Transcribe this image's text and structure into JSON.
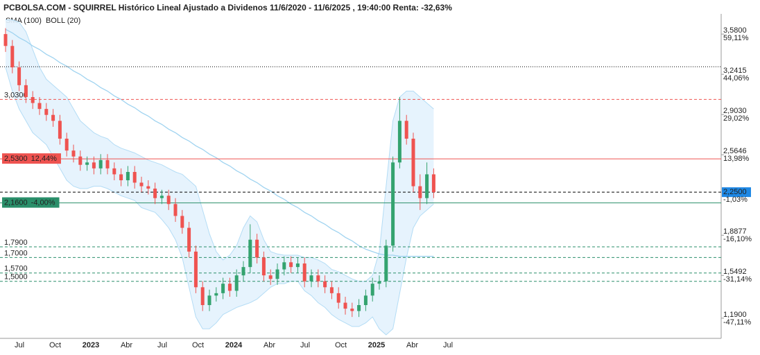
{
  "chart_data": {
    "type": "candlestick",
    "title": "PCBOLSA.COM - SQUIRREL Histórico Lineal Ajustado a Dividenos 11/6/2020 - 11/6/2025 , 19:40:00 Renta: -32,63%",
    "legend": [
      {
        "name": "SMA (100)",
        "color": "#9fd3f0"
      },
      {
        "name": "BOLL (20)",
        "color": "#c8c8c8"
      }
    ],
    "up_color": "#34a36f",
    "down_color": "#ef5350",
    "ylim": [
      1.02,
      3.75
    ],
    "yticks": [
      {
        "value": 3.58,
        "label": "3,5800"
      },
      {
        "value": 3.2415,
        "label": "3,2415"
      },
      {
        "value": 2.903,
        "label": "2,9030"
      },
      {
        "value": 2.5646,
        "label": "2,5646"
      },
      {
        "value": 1.8877,
        "label": "1,8877"
      },
      {
        "value": 1.5492,
        "label": "1,5492"
      },
      {
        "value": 1.19,
        "label": "1,1900"
      }
    ],
    "ytick_changes": [
      "59,11%",
      "44,06%",
      "29,02%",
      "13,98%",
      "-16,10%",
      "-31,14%",
      "-47,11%"
    ],
    "grid": false,
    "categories": [
      "Jul",
      "Oct",
      "2023",
      "Abr",
      "Jul",
      "Oct",
      "2024",
      "Abr",
      "Jul",
      "Oct",
      "2025",
      "Abr",
      "Jul"
    ],
    "levels": [
      {
        "value": 3.305,
        "color": "#000000",
        "style": "dotted"
      },
      {
        "value": 3.03,
        "label": "3,0300",
        "color": "#ef5350",
        "style": "dashed"
      },
      {
        "value": 2.53,
        "label": "2,5300",
        "change": "12,44%",
        "color": "#ef5350",
        "style": "solid"
      },
      {
        "value": 2.16,
        "label": "2,1600",
        "change": "-4,00%",
        "color": "#2a8f6a",
        "style": "solid"
      },
      {
        "value": 1.79,
        "label": "1,7900",
        "color": "#2a8f6a",
        "style": "dashed"
      },
      {
        "value": 1.7,
        "label": "1,7000",
        "color": "#2a8f6a",
        "style": "dashed"
      },
      {
        "value": 1.57,
        "label": "1,5700",
        "color": "#2a8f6a",
        "style": "dashed"
      },
      {
        "value": 1.5,
        "label": "1,5000",
        "color": "#2a8f6a",
        "style": "dashed"
      }
    ],
    "last_price": {
      "value": 2.25,
      "label": "2,2500",
      "change": "-1,03%",
      "color": "#1e88e5"
    },
    "open": [
      3.58,
      3.48,
      3.3,
      3.15,
      3.05,
      3.0,
      2.95,
      2.9,
      2.85,
      2.7,
      2.6,
      2.55,
      2.48,
      2.5,
      2.45,
      2.52,
      2.45,
      2.4,
      2.35,
      2.42,
      2.33,
      2.3,
      2.28,
      2.2,
      2.22,
      2.15,
      2.05,
      1.95,
      1.75,
      1.45,
      1.3,
      1.38,
      1.4,
      1.48,
      1.42,
      1.55,
      1.62,
      1.85,
      1.7,
      1.55,
      1.52,
      1.6,
      1.66,
      1.62,
      1.65,
      1.5,
      1.55,
      1.5,
      1.45,
      1.4,
      1.32,
      1.27,
      1.25,
      1.3,
      1.38,
      1.48,
      1.5,
      1.8,
      2.5,
      2.85,
      2.7,
      2.3,
      2.2,
      2.4
    ],
    "high": [
      3.63,
      3.53,
      3.35,
      3.2,
      3.1,
      3.05,
      3.0,
      2.95,
      2.9,
      2.75,
      2.65,
      2.6,
      2.55,
      2.55,
      2.57,
      2.57,
      2.5,
      2.45,
      2.47,
      2.47,
      2.38,
      2.35,
      2.33,
      2.27,
      2.27,
      2.2,
      2.1,
      2.0,
      1.8,
      1.5,
      1.43,
      1.45,
      1.53,
      1.53,
      1.6,
      1.67,
      1.98,
      1.9,
      1.75,
      1.6,
      1.65,
      1.71,
      1.71,
      1.7,
      1.7,
      1.6,
      1.6,
      1.55,
      1.5,
      1.45,
      1.37,
      1.32,
      1.35,
      1.43,
      1.53,
      1.55,
      1.85,
      2.55,
      3.05,
      2.9,
      2.75,
      2.4,
      2.5,
      2.45
    ],
    "low": [
      3.43,
      3.25,
      3.1,
      3.0,
      2.95,
      2.9,
      2.85,
      2.8,
      2.65,
      2.55,
      2.5,
      2.43,
      2.43,
      2.4,
      2.4,
      2.4,
      2.35,
      2.3,
      2.3,
      2.28,
      2.25,
      2.23,
      2.15,
      2.15,
      2.1,
      2.0,
      1.9,
      1.7,
      1.4,
      1.25,
      1.25,
      1.33,
      1.35,
      1.37,
      1.37,
      1.5,
      1.57,
      1.65,
      1.5,
      1.47,
      1.47,
      1.55,
      1.57,
      1.57,
      1.45,
      1.45,
      1.45,
      1.4,
      1.35,
      1.27,
      1.22,
      1.2,
      1.2,
      1.25,
      1.33,
      1.43,
      1.45,
      1.75,
      2.45,
      2.65,
      2.25,
      2.1,
      2.15,
      2.2
    ],
    "close": [
      3.48,
      3.3,
      3.15,
      3.05,
      3.0,
      2.95,
      2.9,
      2.85,
      2.7,
      2.6,
      2.55,
      2.48,
      2.5,
      2.45,
      2.52,
      2.45,
      2.4,
      2.35,
      2.42,
      2.33,
      2.3,
      2.28,
      2.2,
      2.22,
      2.15,
      2.05,
      1.95,
      1.75,
      1.45,
      1.3,
      1.38,
      1.4,
      1.48,
      1.42,
      1.55,
      1.62,
      1.85,
      1.7,
      1.55,
      1.52,
      1.6,
      1.66,
      1.62,
      1.65,
      1.5,
      1.55,
      1.5,
      1.45,
      1.4,
      1.32,
      1.27,
      1.25,
      1.3,
      1.38,
      1.48,
      1.5,
      1.8,
      2.5,
      2.85,
      2.7,
      2.3,
      2.2,
      2.4,
      2.25
    ],
    "sma": [
      3.62,
      3.59,
      3.55,
      3.52,
      3.48,
      3.45,
      3.41,
      3.38,
      3.34,
      3.31,
      3.27,
      3.24,
      3.2,
      3.17,
      3.13,
      3.1,
      3.06,
      3.03,
      2.99,
      2.96,
      2.92,
      2.89,
      2.85,
      2.82,
      2.78,
      2.75,
      2.71,
      2.68,
      2.64,
      2.61,
      2.57,
      2.54,
      2.5,
      2.47,
      2.43,
      2.4,
      2.36,
      2.33,
      2.29,
      2.26,
      2.22,
      2.19,
      2.15,
      2.12,
      2.08,
      2.05,
      2.01,
      1.98,
      1.94,
      1.91,
      1.87,
      1.84,
      1.8,
      1.77,
      1.75,
      1.73,
      1.72,
      1.72,
      1.71,
      1.71,
      1.71,
      1.71,
      1.71,
      1.71
    ],
    "boll_upper": [
      3.7,
      3.7,
      3.68,
      3.6,
      3.45,
      3.3,
      3.2,
      3.15,
      3.1,
      3.05,
      2.95,
      2.85,
      2.8,
      2.75,
      2.72,
      2.7,
      2.65,
      2.62,
      2.6,
      2.58,
      2.55,
      2.52,
      2.5,
      2.48,
      2.45,
      2.42,
      2.4,
      2.35,
      2.3,
      2.1,
      1.9,
      1.75,
      1.68,
      1.72,
      1.8,
      1.95,
      2.05,
      2.0,
      1.85,
      1.75,
      1.73,
      1.72,
      1.72,
      1.72,
      1.7,
      1.7,
      1.68,
      1.65,
      1.6,
      1.58,
      1.55,
      1.52,
      1.5,
      1.5,
      1.55,
      1.75,
      2.3,
      2.85,
      3.05,
      3.1,
      3.1,
      3.05,
      3.0,
      2.95
    ],
    "boll_lower": [
      3.3,
      3.1,
      2.95,
      2.85,
      2.75,
      2.7,
      2.65,
      2.55,
      2.45,
      2.35,
      2.3,
      2.28,
      2.28,
      2.3,
      2.3,
      2.28,
      2.25,
      2.22,
      2.2,
      2.18,
      2.12,
      2.1,
      2.08,
      2.02,
      1.95,
      1.85,
      1.7,
      1.45,
      1.2,
      1.1,
      1.1,
      1.15,
      1.22,
      1.25,
      1.28,
      1.3,
      1.32,
      1.35,
      1.4,
      1.45,
      1.48,
      1.48,
      1.5,
      1.5,
      1.42,
      1.38,
      1.32,
      1.28,
      1.22,
      1.18,
      1.15,
      1.12,
      1.12,
      1.15,
      1.2,
      1.1,
      1.05,
      1.1,
      1.4,
      1.7,
      1.95,
      2.05,
      2.1,
      2.15
    ]
  }
}
